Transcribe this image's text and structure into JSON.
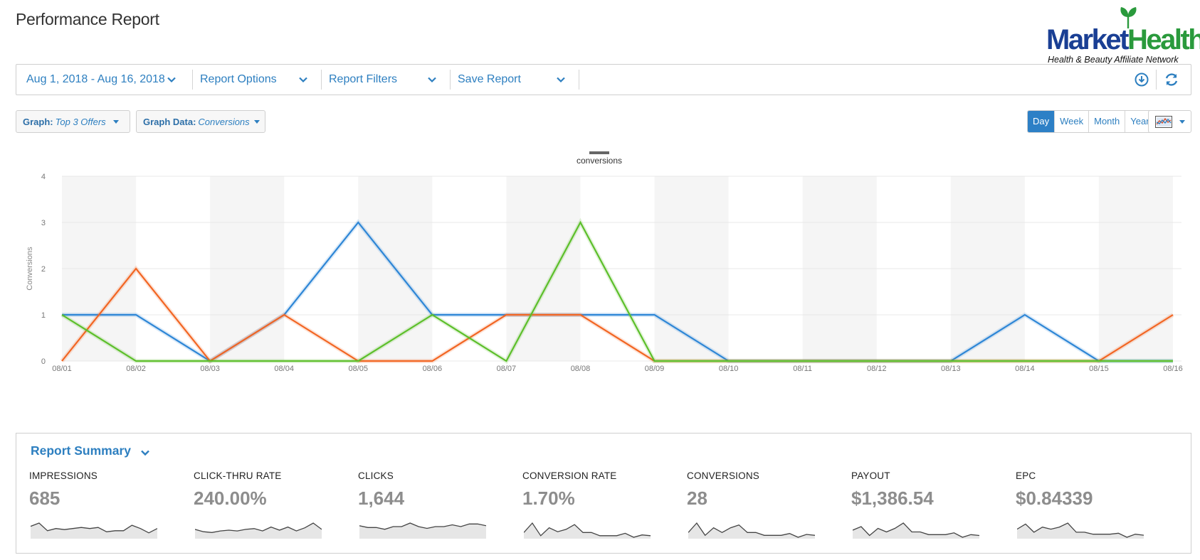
{
  "page": {
    "title": "Performance Report"
  },
  "logo": {
    "brand_part1": "Market",
    "brand_part2": "Health",
    "tagline": "Health & Beauty Affiliate Network"
  },
  "toolbar": {
    "date_range": "Aug 1, 2018 - Aug 16, 2018",
    "report_options": "Report Options",
    "report_filters": "Report Filters",
    "save_report": "Save Report",
    "icons": [
      "download-icon",
      "refresh-icon"
    ]
  },
  "graph_controls": {
    "graph_label": "Graph:",
    "graph_value": "Top 3 Offers",
    "data_label": "Graph Data:",
    "data_value": "Conversions",
    "periods": [
      "Day",
      "Week",
      "Month",
      "Year"
    ],
    "selected_period": "Day",
    "view_icon": "chart-view-icon"
  },
  "chart_data": {
    "type": "line",
    "legend": [
      "conversions"
    ],
    "ylabel": "Conversions",
    "ylim": [
      0,
      4
    ],
    "yticks": [
      "0",
      "1",
      "2",
      "3",
      "4"
    ],
    "x": [
      "08/01",
      "08/02",
      "08/03",
      "08/04",
      "08/05",
      "08/06",
      "08/07",
      "08/08",
      "08/09",
      "08/10",
      "08/11",
      "08/12",
      "08/13",
      "08/14",
      "08/15",
      "08/16"
    ],
    "series": [
      {
        "color": "#2d86d6",
        "values": [
          1,
          1,
          0,
          1,
          3,
          1,
          1,
          1,
          1,
          0,
          0,
          0,
          0,
          1,
          0,
          0
        ]
      },
      {
        "color": "#f26522",
        "values": [
          0,
          2,
          0,
          1,
          0,
          0,
          1,
          1,
          0,
          0,
          0,
          0,
          0,
          0,
          0,
          1
        ]
      },
      {
        "color": "#5cbf2a",
        "values": [
          1,
          0,
          0,
          0,
          0,
          1,
          0,
          3,
          0,
          0,
          0,
          0,
          0,
          0,
          0,
          0
        ]
      }
    ],
    "shaded_bands": true
  },
  "summary": {
    "title": "Report Summary",
    "metrics": [
      {
        "label": "IMPRESSIONS",
        "value": "685",
        "trend": [
          10,
          13,
          6,
          8,
          7,
          8,
          9,
          8,
          9,
          5,
          6,
          6,
          11,
          8,
          4,
          8
        ]
      },
      {
        "label": "CLICK-THRU RATE",
        "value": "240.00%",
        "trend": [
          10,
          7,
          6,
          8,
          9,
          8,
          10,
          11,
          8,
          13,
          9,
          13,
          8,
          12,
          18,
          10
        ]
      },
      {
        "label": "CLICKS",
        "value": "1,644",
        "trend": [
          13,
          11,
          11,
          9,
          12,
          12,
          16,
          12,
          10,
          12,
          12,
          14,
          12,
          15,
          15,
          13
        ]
      },
      {
        "label": "CONVERSION RATE",
        "value": "1.70%",
        "trend": [
          6,
          18,
          2,
          12,
          7,
          10,
          16,
          6,
          6,
          2,
          2,
          2,
          5,
          0,
          3,
          2
        ]
      },
      {
        "label": "CONVERSIONS",
        "value": "28",
        "trend": [
          5,
          15,
          2,
          10,
          5,
          10,
          13,
          5,
          5,
          2,
          2,
          2,
          4,
          0,
          3,
          2
        ]
      },
      {
        "label": "PAYOUT",
        "value": "$1,386.54",
        "trend": [
          8,
          12,
          2,
          10,
          6,
          10,
          16,
          6,
          6,
          3,
          3,
          3,
          5,
          0,
          3,
          2
        ]
      },
      {
        "label": "EPC",
        "value": "$0.84339",
        "trend": [
          8,
          13,
          5,
          10,
          8,
          10,
          14,
          5,
          5,
          3,
          3,
          3,
          4,
          0,
          3,
          2
        ]
      }
    ]
  }
}
